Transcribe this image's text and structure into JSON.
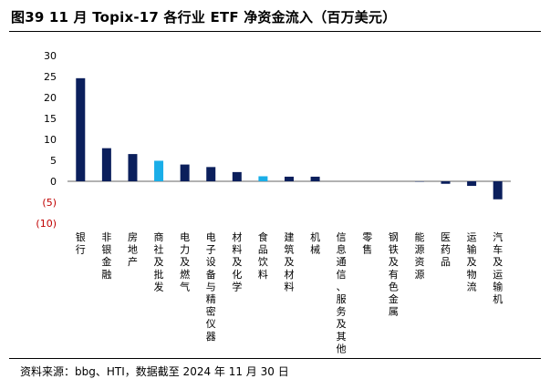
{
  "title": "图39 11 月 Topix-17 各行业 ETF 净资金流入（百万美元）",
  "source": "资料来源：bbg、HTI，数据截至 2024 年 11 月 30 日",
  "colors": {
    "dark_bar": "#0b1f5c",
    "highlight_bar": "#1aaee8",
    "negative_tick": "#c00000",
    "axis": "#333333"
  },
  "chart_data": {
    "type": "bar",
    "title": "",
    "xlabel": "",
    "ylabel": "",
    "ylim": [
      -10,
      30
    ],
    "yticks": [
      {
        "value": 30,
        "label": "30",
        "negative": false
      },
      {
        "value": 25,
        "label": "25",
        "negative": false
      },
      {
        "value": 20,
        "label": "20",
        "negative": false
      },
      {
        "value": 15,
        "label": "15",
        "negative": false
      },
      {
        "value": 10,
        "label": "10",
        "negative": false
      },
      {
        "value": 5,
        "label": "5",
        "negative": false
      },
      {
        "value": 0,
        "label": "0",
        "negative": false
      },
      {
        "value": -5,
        "label": "(5)",
        "negative": true
      },
      {
        "value": -10,
        "label": "(10)",
        "negative": true
      }
    ],
    "grid": false,
    "categories": [
      "银行",
      "非银金融",
      "房地产",
      "商社及批发",
      "电力及燃气",
      "电子设备与精密仪器",
      "材料及化学",
      "食品饮料",
      "建筑及材料",
      "机械",
      "信息通信、服务及其他",
      "零售",
      "钢铁及有色金属",
      "能源资源",
      "医药品",
      "运输及物流",
      "汽车及运输机"
    ],
    "values": [
      24.6,
      7.9,
      6.5,
      4.9,
      4.0,
      3.4,
      2.2,
      1.2,
      1.1,
      1.1,
      0.05,
      0.0,
      -0.05,
      -0.1,
      -0.6,
      -1.1,
      -4.3
    ],
    "highlight": [
      false,
      false,
      false,
      true,
      false,
      false,
      false,
      true,
      false,
      false,
      false,
      false,
      false,
      false,
      false,
      false,
      false
    ]
  }
}
